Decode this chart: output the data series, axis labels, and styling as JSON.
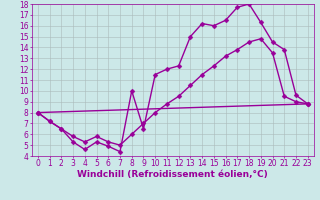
{
  "xlabel": "Windchill (Refroidissement éolien,°C)",
  "bg_color": "#cce8e8",
  "grid_color": "#aabbbb",
  "line_color": "#990099",
  "xlim": [
    -0.5,
    23.5
  ],
  "ylim": [
    4,
    18
  ],
  "xticks": [
    0,
    1,
    2,
    3,
    4,
    5,
    6,
    7,
    8,
    9,
    10,
    11,
    12,
    13,
    14,
    15,
    16,
    17,
    18,
    19,
    20,
    21,
    22,
    23
  ],
  "yticks": [
    4,
    5,
    6,
    7,
    8,
    9,
    10,
    11,
    12,
    13,
    14,
    15,
    16,
    17,
    18
  ],
  "line1_x": [
    0,
    1,
    2,
    3,
    4,
    5,
    6,
    7,
    8,
    9,
    10,
    11,
    12,
    13,
    14,
    15,
    16,
    17,
    18,
    19,
    20,
    21,
    22,
    23
  ],
  "line1_y": [
    8.0,
    7.2,
    6.5,
    5.3,
    4.6,
    5.3,
    4.9,
    4.4,
    10.0,
    6.5,
    11.5,
    12.0,
    12.3,
    15.0,
    16.2,
    16.0,
    16.5,
    17.7,
    18.0,
    16.3,
    14.5,
    13.8,
    9.6,
    8.8
  ],
  "line2_x": [
    0,
    1,
    2,
    3,
    4,
    5,
    6,
    7,
    8,
    9,
    10,
    11,
    12,
    13,
    14,
    15,
    16,
    17,
    18,
    19,
    20,
    21,
    22,
    23
  ],
  "line2_y": [
    8.0,
    7.2,
    6.5,
    5.8,
    5.3,
    5.8,
    5.3,
    5.0,
    6.0,
    7.0,
    8.0,
    8.8,
    9.5,
    10.5,
    11.5,
    12.3,
    13.2,
    13.8,
    14.5,
    14.8,
    13.5,
    9.5,
    9.0,
    8.8
  ],
  "line3_x": [
    0,
    23
  ],
  "line3_y": [
    8.0,
    8.8
  ],
  "marker_size": 2.5,
  "line_width": 1.0,
  "tick_fontsize": 5.5,
  "xlabel_fontsize": 6.5,
  "tick_color": "#990099",
  "xlabel_color": "#990099"
}
